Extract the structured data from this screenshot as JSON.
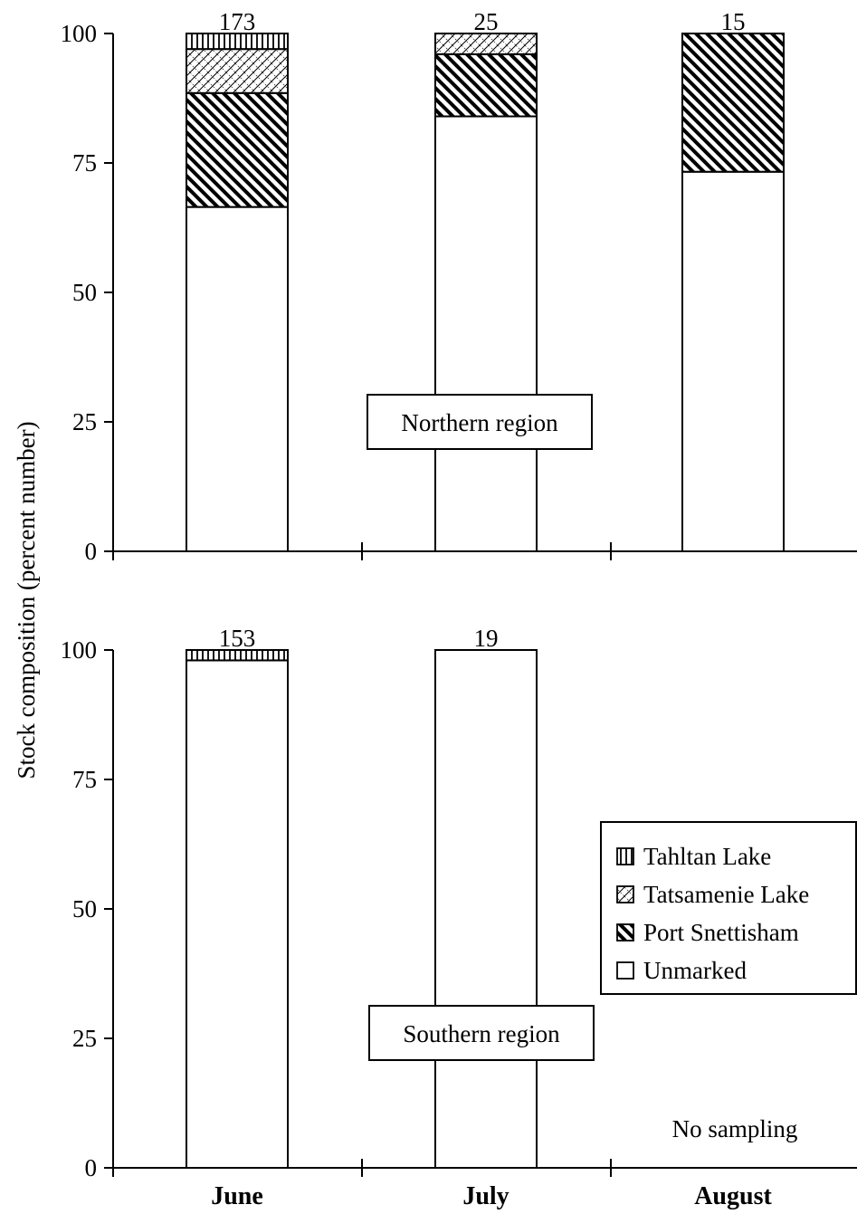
{
  "chart_data": {
    "type": "bar",
    "stacked": true,
    "categories": [
      "June",
      "July",
      "August"
    ],
    "ylabel": "Stock composition (percent number)",
    "ylim": [
      0,
      100
    ],
    "yticks": [
      "0",
      "25",
      "50",
      "75",
      "100"
    ],
    "grid": false,
    "legend": {
      "placement": "bottom-panel right",
      "entries": [
        {
          "label": "Tahltan Lake",
          "pattern": "vertical-lines"
        },
        {
          "label": "Tatsamenie Lake",
          "pattern": "crosshatch"
        },
        {
          "label": "Port Snettisham",
          "pattern": "diagonal-lines"
        },
        {
          "label": "Unmarked",
          "pattern": "none"
        }
      ]
    },
    "panels": [
      {
        "region_label": "Northern region",
        "sample_sizes": [
          "173",
          "25",
          "15"
        ],
        "series": [
          {
            "name": "Unmarked",
            "values": [
              66.5,
              84,
              73.3
            ]
          },
          {
            "name": "Port Snettisham",
            "values": [
              22,
              12,
              26.7
            ]
          },
          {
            "name": "Tatsamenie Lake",
            "values": [
              8.5,
              4,
              0
            ]
          },
          {
            "name": "Tahltan Lake",
            "values": [
              3,
              0,
              0
            ]
          }
        ]
      },
      {
        "region_label": "Southern region",
        "sample_sizes": [
          "153",
          "19",
          ""
        ],
        "note": "No sampling",
        "series": [
          {
            "name": "Unmarked",
            "values": [
              98,
              100,
              null
            ]
          },
          {
            "name": "Port Snettisham",
            "values": [
              0,
              0,
              null
            ]
          },
          {
            "name": "Tatsamenie Lake",
            "values": [
              0,
              0,
              null
            ]
          },
          {
            "name": "Tahltan Lake",
            "values": [
              2,
              0,
              null
            ]
          }
        ]
      }
    ]
  }
}
